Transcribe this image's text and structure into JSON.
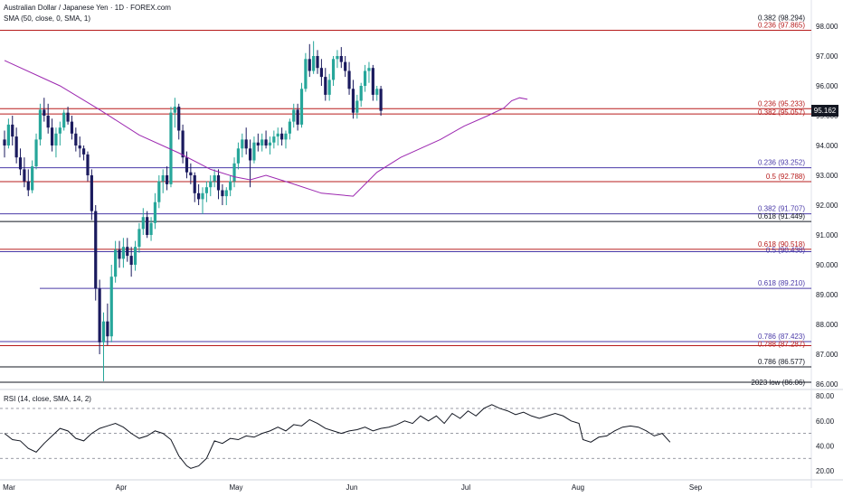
{
  "header": {
    "title": "Australian Dollar / Japanese Yen · 1D · FOREX.com",
    "indicator": "SMA (50, close, 0, SMA, 1)",
    "rsi_indicator": "RSI (14, close, SMA, 14, 2)"
  },
  "current_price": "95.162",
  "colors": {
    "up": "#26a69a",
    "down": "#1a1a5e",
    "sma": "#9c27b0",
    "red_level": "#b71c1c",
    "purple_level": "#4a3aa8",
    "black_level": "#131722",
    "rsi": "#131722"
  },
  "chart_data": [
    {
      "type": "candlestick",
      "title": "",
      "xlabel": "",
      "ylabel": "",
      "x_tick_labels": [
        "Mar",
        "Apr",
        "May",
        "Jun",
        "Jul",
        "Aug",
        "Sep"
      ],
      "y_ticks": [
        86.0,
        87.0,
        88.0,
        89.0,
        90.0,
        91.0,
        92.0,
        93.0,
        94.0,
        95.0,
        96.0,
        97.0,
        98.0
      ],
      "ylim": [
        85.9,
        98.6
      ],
      "grid": false,
      "candles": [
        [
          94.2,
          94.5,
          93.6,
          94.0
        ],
        [
          94.0,
          94.9,
          93.9,
          94.7
        ],
        [
          94.7,
          95.0,
          94.0,
          94.3
        ],
        [
          94.3,
          94.6,
          93.4,
          93.6
        ],
        [
          93.6,
          93.9,
          93.0,
          93.2
        ],
        [
          93.2,
          93.6,
          92.6,
          92.8
        ],
        [
          92.8,
          93.2,
          92.3,
          92.5
        ],
        [
          92.5,
          93.5,
          92.4,
          93.3
        ],
        [
          93.3,
          94.4,
          93.2,
          94.2
        ],
        [
          94.2,
          95.4,
          94.0,
          95.2
        ],
        [
          95.2,
          95.6,
          94.8,
          95.0
        ],
        [
          95.0,
          95.4,
          94.4,
          94.6
        ],
        [
          94.6,
          94.9,
          93.8,
          94.0
        ],
        [
          94.0,
          94.6,
          93.6,
          94.4
        ],
        [
          94.4,
          94.8,
          94.0,
          94.6
        ],
        [
          94.6,
          95.2,
          94.5,
          95.1
        ],
        [
          95.1,
          95.3,
          94.7,
          94.8
        ],
        [
          94.8,
          95.0,
          94.2,
          94.4
        ],
        [
          94.4,
          94.6,
          93.8,
          94.0
        ],
        [
          94.0,
          94.3,
          93.6,
          93.9
        ],
        [
          93.9,
          94.0,
          93.5,
          93.7
        ],
        [
          93.7,
          93.8,
          92.8,
          93.0
        ],
        [
          93.0,
          93.2,
          91.5,
          91.8
        ],
        [
          91.8,
          92.0,
          88.8,
          89.2
        ],
        [
          89.2,
          89.5,
          87.0,
          87.4
        ],
        [
          87.4,
          88.4,
          86.1,
          88.1
        ],
        [
          88.1,
          88.7,
          87.3,
          87.6
        ],
        [
          87.6,
          90.0,
          87.4,
          89.6
        ],
        [
          89.6,
          90.8,
          89.4,
          90.5
        ],
        [
          90.5,
          90.8,
          89.9,
          90.2
        ],
        [
          90.2,
          90.9,
          89.9,
          90.6
        ],
        [
          90.6,
          90.9,
          90.1,
          90.3
        ],
        [
          90.3,
          90.6,
          89.6,
          90.0
        ],
        [
          90.0,
          90.8,
          89.8,
          90.6
        ],
        [
          90.6,
          91.4,
          90.4,
          91.2
        ],
        [
          91.2,
          91.9,
          91.0,
          91.6
        ],
        [
          91.6,
          91.8,
          90.9,
          91.0
        ],
        [
          91.0,
          91.6,
          90.8,
          91.4
        ],
        [
          91.4,
          92.4,
          91.2,
          92.1
        ],
        [
          92.1,
          93.0,
          91.9,
          92.8
        ],
        [
          92.8,
          93.2,
          92.4,
          93.0
        ],
        [
          93.0,
          93.3,
          92.5,
          92.7
        ],
        [
          92.7,
          95.3,
          92.6,
          95.1
        ],
        [
          95.1,
          95.6,
          94.6,
          95.3
        ],
        [
          95.3,
          95.4,
          94.2,
          94.5
        ],
        [
          94.5,
          94.7,
          93.4,
          93.6
        ],
        [
          93.6,
          93.8,
          92.9,
          93.1
        ],
        [
          93.1,
          93.4,
          92.7,
          93.0
        ],
        [
          93.0,
          93.1,
          92.1,
          92.4
        ],
        [
          92.4,
          92.7,
          92.0,
          92.2
        ],
        [
          92.2,
          92.6,
          91.7,
          92.4
        ],
        [
          92.4,
          92.8,
          92.1,
          92.6
        ],
        [
          92.6,
          93.0,
          92.3,
          92.8
        ],
        [
          92.8,
          93.2,
          92.6,
          93.0
        ],
        [
          93.0,
          93.2,
          92.2,
          92.5
        ],
        [
          92.5,
          92.7,
          92.0,
          92.3
        ],
        [
          92.3,
          92.6,
          92.0,
          92.5
        ],
        [
          92.5,
          93.0,
          92.3,
          92.8
        ],
        [
          92.8,
          93.6,
          92.6,
          93.4
        ],
        [
          93.4,
          94.1,
          93.2,
          93.9
        ],
        [
          93.9,
          94.4,
          93.6,
          94.2
        ],
        [
          94.2,
          94.6,
          93.7,
          93.9
        ],
        [
          93.9,
          94.2,
          92.6,
          93.5
        ],
        [
          93.5,
          94.3,
          93.4,
          94.1
        ],
        [
          94.1,
          94.4,
          93.8,
          94.0
        ],
        [
          94.0,
          94.4,
          93.8,
          94.2
        ],
        [
          94.2,
          94.5,
          93.9,
          94.0
        ],
        [
          94.0,
          94.3,
          93.7,
          94.1
        ],
        [
          94.1,
          94.5,
          93.9,
          94.3
        ],
        [
          94.3,
          94.6,
          94.0,
          94.4
        ],
        [
          94.4,
          94.6,
          94.0,
          94.2
        ],
        [
          94.2,
          94.5,
          93.9,
          94.4
        ],
        [
          94.4,
          94.9,
          94.2,
          94.8
        ],
        [
          94.8,
          95.4,
          94.6,
          95.2
        ],
        [
          95.2,
          95.4,
          94.5,
          94.7
        ],
        [
          94.7,
          96.1,
          94.6,
          95.9
        ],
        [
          95.9,
          97.1,
          95.8,
          96.9
        ],
        [
          96.9,
          97.4,
          96.3,
          96.5
        ],
        [
          96.5,
          97.5,
          96.4,
          97.0
        ],
        [
          97.0,
          97.2,
          96.4,
          96.6
        ],
        [
          96.6,
          96.9,
          96.0,
          96.3
        ],
        [
          96.3,
          96.6,
          95.5,
          95.7
        ],
        [
          95.7,
          96.4,
          95.5,
          96.2
        ],
        [
          96.2,
          97.0,
          96.0,
          96.9
        ],
        [
          96.9,
          97.2,
          96.6,
          97.0
        ],
        [
          97.0,
          97.3,
          96.6,
          96.8
        ],
        [
          96.8,
          97.0,
          96.3,
          96.5
        ],
        [
          96.5,
          96.8,
          95.7,
          95.9
        ],
        [
          95.9,
          96.2,
          94.9,
          95.1
        ],
        [
          95.1,
          95.7,
          94.9,
          95.5
        ],
        [
          95.5,
          96.1,
          95.3,
          96.0
        ],
        [
          96.0,
          96.7,
          95.8,
          96.5
        ],
        [
          96.5,
          96.8,
          96.1,
          96.6
        ],
        [
          96.6,
          96.7,
          95.5,
          95.7
        ],
        [
          95.7,
          96.0,
          95.5,
          95.9
        ],
        [
          95.9,
          96.0,
          95.0,
          95.162
        ]
      ],
      "sma_50": [
        [
          0,
          96.85
        ],
        [
          14,
          96.0
        ],
        [
          24,
          95.2
        ],
        [
          34,
          94.35
        ],
        [
          44,
          93.75
        ],
        [
          52,
          93.2
        ],
        [
          58,
          92.95
        ],
        [
          62,
          92.85
        ],
        [
          66,
          93.0
        ],
        [
          72,
          92.75
        ],
        [
          80,
          92.4
        ],
        [
          88,
          92.3
        ],
        [
          94,
          93.1
        ],
        [
          100,
          93.6
        ],
        [
          110,
          94.2
        ],
        [
          116,
          94.65
        ],
        [
          122,
          95.0
        ],
        [
          126,
          95.25
        ],
        [
          128,
          95.5
        ],
        [
          130,
          95.6
        ],
        [
          132,
          95.55
        ]
      ],
      "fib_levels": [
        {
          "label": "0.382 (98.294)",
          "value": 98.294,
          "color": "black",
          "span": "none"
        },
        {
          "label": "0.236 (97.865)",
          "value": 97.865,
          "color": "red",
          "span": "full"
        },
        {
          "label": "0.236 (95.233)",
          "value": 95.233,
          "color": "red",
          "span": "full"
        },
        {
          "label": "0.382 (95.057)",
          "value": 95.057,
          "color": "red",
          "span": "full"
        },
        {
          "label": "0.236 (93.252)",
          "value": 93.252,
          "color": "purple",
          "span": "full"
        },
        {
          "label": "0.5 (92.788)",
          "value": 92.788,
          "color": "red",
          "span": "full"
        },
        {
          "label": "0.382 (91.707)",
          "value": 91.707,
          "color": "purple",
          "span": "full"
        },
        {
          "label": "0.618 (91.449)",
          "value": 91.449,
          "color": "black",
          "span": "full"
        },
        {
          "label": "0.618 (90.518)",
          "value": 90.518,
          "color": "red",
          "span": "full"
        },
        {
          "label": "0.5 (90.438)",
          "value": 90.438,
          "color": "purple",
          "span": "full"
        },
        {
          "label": "0.618 (89.210)",
          "value": 89.21,
          "color": "purple",
          "span": "partial"
        },
        {
          "label": "0.786 (87.423)",
          "value": 87.423,
          "color": "purple",
          "span": "full"
        },
        {
          "label": "0.788 (87.287)",
          "value": 87.287,
          "color": "red",
          "span": "full"
        },
        {
          "label": "0.786 (86.577)",
          "value": 86.577,
          "color": "black",
          "span": "full"
        },
        {
          "label": "2023 low (86.06)",
          "value": 86.06,
          "color": "black",
          "span": "full"
        }
      ]
    },
    {
      "type": "line",
      "title": "",
      "y_ticks": [
        20.0,
        40.0,
        60.0,
        80.0
      ],
      "ylim": [
        15,
        83
      ],
      "band_lines": [
        30,
        50,
        70
      ],
      "rsi": [
        [
          0,
          50
        ],
        [
          2,
          45
        ],
        [
          4,
          44
        ],
        [
          6,
          38
        ],
        [
          8,
          35
        ],
        [
          10,
          42
        ],
        [
          12,
          48
        ],
        [
          14,
          54
        ],
        [
          16,
          52
        ],
        [
          18,
          46
        ],
        [
          20,
          44
        ],
        [
          22,
          50
        ],
        [
          24,
          54
        ],
        [
          26,
          56
        ],
        [
          28,
          58
        ],
        [
          30,
          55
        ],
        [
          32,
          50
        ],
        [
          34,
          46
        ],
        [
          36,
          48
        ],
        [
          38,
          52
        ],
        [
          40,
          50
        ],
        [
          42,
          45
        ],
        [
          44,
          32
        ],
        [
          46,
          24
        ],
        [
          47,
          22
        ],
        [
          49,
          24
        ],
        [
          51,
          30
        ],
        [
          53,
          44
        ],
        [
          55,
          42
        ],
        [
          57,
          46
        ],
        [
          59,
          45
        ],
        [
          61,
          48
        ],
        [
          63,
          47
        ],
        [
          65,
          50
        ],
        [
          67,
          52
        ],
        [
          69,
          55
        ],
        [
          71,
          52
        ],
        [
          73,
          57
        ],
        [
          75,
          56
        ],
        [
          77,
          61
        ],
        [
          79,
          58
        ],
        [
          81,
          54
        ],
        [
          83,
          52
        ],
        [
          85,
          50
        ],
        [
          87,
          52
        ],
        [
          89,
          53
        ],
        [
          91,
          55
        ],
        [
          93,
          52
        ],
        [
          95,
          54
        ],
        [
          97,
          55
        ],
        [
          99,
          57
        ],
        [
          101,
          60
        ],
        [
          103,
          58
        ],
        [
          105,
          64
        ],
        [
          107,
          60
        ],
        [
          109,
          64
        ],
        [
          111,
          58
        ],
        [
          113,
          66
        ],
        [
          115,
          62
        ],
        [
          117,
          68
        ],
        [
          119,
          64
        ],
        [
          121,
          70
        ],
        [
          123,
          73
        ],
        [
          125,
          70
        ],
        [
          127,
          68
        ],
        [
          129,
          65
        ],
        [
          131,
          67
        ],
        [
          133,
          64
        ],
        [
          135,
          62
        ],
        [
          137,
          64
        ],
        [
          139,
          66
        ],
        [
          141,
          64
        ],
        [
          143,
          60
        ],
        [
          145,
          58
        ],
        [
          146,
          45
        ],
        [
          148,
          43
        ],
        [
          150,
          47
        ],
        [
          152,
          48
        ],
        [
          154,
          52
        ],
        [
          156,
          55
        ],
        [
          158,
          56
        ],
        [
          160,
          55
        ],
        [
          162,
          52
        ],
        [
          163,
          50
        ],
        [
          164,
          48
        ],
        [
          166,
          50
        ],
        [
          168,
          43
        ]
      ]
    }
  ]
}
